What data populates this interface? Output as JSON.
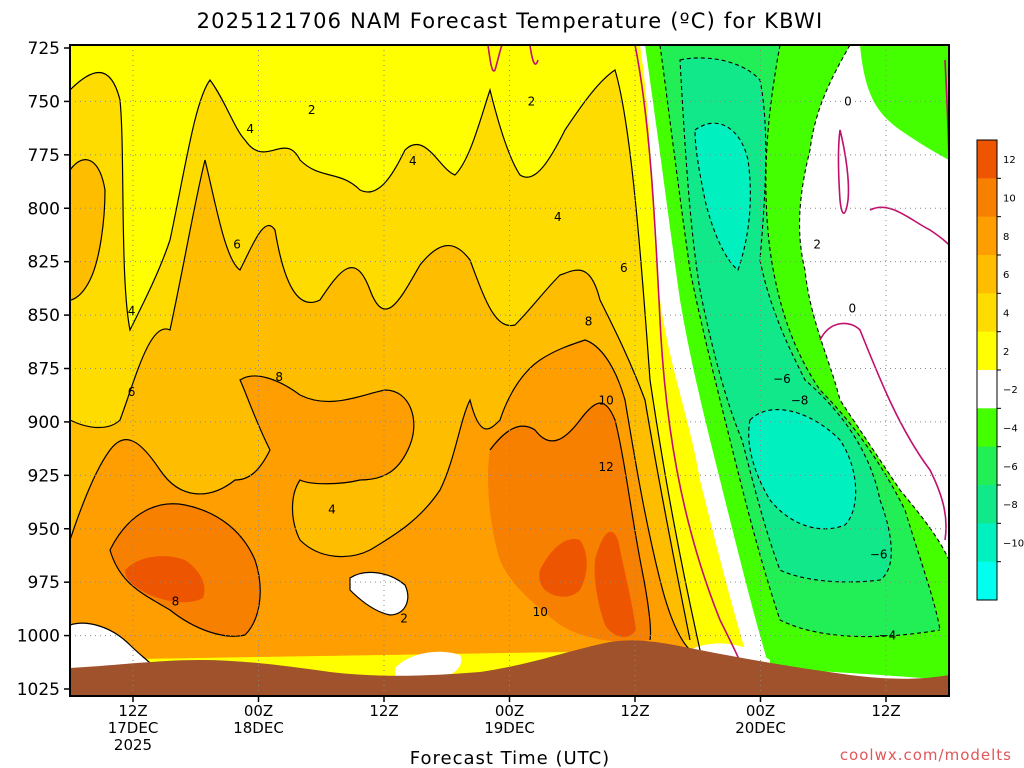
{
  "chart_data": {
    "type": "heatmap",
    "title": "2025121706 NAM Forecast Temperature (ºC) for KBWI",
    "xlabel": "Forecast Time (UTC)",
    "ylabel": "",
    "y_scale": "pressure (hPa, inverted)",
    "y_ticks": [
      "725",
      "750",
      "775",
      "800",
      "825",
      "850",
      "875",
      "900",
      "925",
      "950",
      "975",
      "1000",
      "1025"
    ],
    "ylim": [
      1025,
      725
    ],
    "x_ticks": [
      {
        "l1": "12Z",
        "l2": "17DEC",
        "l3": "2025"
      },
      {
        "l1": "00Z",
        "l2": "18DEC",
        "l3": ""
      },
      {
        "l1": "12Z",
        "l2": "",
        "l3": ""
      },
      {
        "l1": "00Z",
        "l2": "19DEC",
        "l3": ""
      },
      {
        "l1": "12Z",
        "l2": "",
        "l3": ""
      },
      {
        "l1": "00Z",
        "l2": "20DEC",
        "l3": ""
      },
      {
        "l1": "12Z",
        "l2": "",
        "l3": ""
      }
    ],
    "grid": true,
    "colorbar": {
      "levels": [
        "12",
        "10",
        "8",
        "6",
        "4",
        "2",
        "−2",
        "−4",
        "−6",
        "−8",
        "−10"
      ],
      "colors": [
        "#ee5500",
        "#f88000",
        "#ff9e00",
        "#ffbd00",
        "#ffdc00",
        "#ffff00",
        "#ffffff",
        "#44ff00",
        "#22ee55",
        "#11e88a",
        "#00f0bf",
        "#00ffee"
      ]
    },
    "contour_labels": [
      {
        "text": "2",
        "px": 0.275,
        "pr": 754
      },
      {
        "text": "2",
        "px": 0.525,
        "pr": 750
      },
      {
        "text": "4",
        "px": 0.205,
        "pr": 763
      },
      {
        "text": "4",
        "px": 0.39,
        "pr": 778
      },
      {
        "text": "4",
        "px": 0.555,
        "pr": 804
      },
      {
        "text": "6",
        "px": 0.19,
        "pr": 817
      },
      {
        "text": "6",
        "px": 0.63,
        "pr": 828
      },
      {
        "text": "4",
        "px": 0.07,
        "pr": 848
      },
      {
        "text": "8",
        "px": 0.59,
        "pr": 853
      },
      {
        "text": "8",
        "px": 0.238,
        "pr": 879
      },
      {
        "text": "10",
        "px": 0.61,
        "pr": 890
      },
      {
        "text": "6",
        "px": 0.07,
        "pr": 886
      },
      {
        "text": "12",
        "px": 0.61,
        "pr": 921
      },
      {
        "text": "4",
        "px": 0.298,
        "pr": 941
      },
      {
        "text": "8",
        "px": 0.12,
        "pr": 984
      },
      {
        "text": "2",
        "px": 0.38,
        "pr": 992
      },
      {
        "text": "10",
        "px": 0.535,
        "pr": 989
      },
      {
        "text": "0",
        "px": 0.885,
        "pr": 750
      },
      {
        "text": "2",
        "px": 0.85,
        "pr": 817
      },
      {
        "text": "0",
        "px": 0.89,
        "pr": 847
      },
      {
        "text": "−6",
        "px": 0.81,
        "pr": 880
      },
      {
        "text": "−8",
        "px": 0.83,
        "pr": 890
      },
      {
        "text": "−6",
        "px": 0.92,
        "pr": 962
      },
      {
        "text": "−4",
        "px": 0.93,
        "pr": 1000
      }
    ]
  },
  "credit": "coolwx.com/modelts",
  "colors": {
    "ground": "#a0522d",
    "contour_zero": "#c0106c",
    "frame": "#000000"
  }
}
